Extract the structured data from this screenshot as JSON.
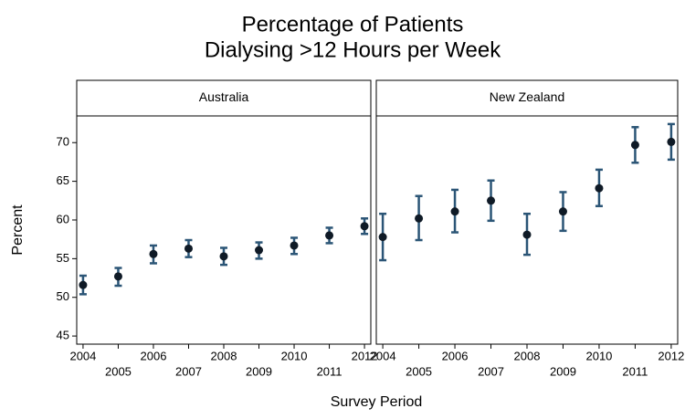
{
  "chart_data": {
    "type": "errorbar",
    "title": [
      "Percentage of Patients",
      "Dialysing >12 Hours per Week"
    ],
    "xlabel": "Survey Period",
    "ylabel": "Percent",
    "xlim": [
      2003.82,
      2012.18
    ],
    "xticks": [
      2004,
      2005,
      2006,
      2007,
      2008,
      2009,
      2010,
      2011,
      2012
    ],
    "ylim": [
      43.95,
      73.45
    ],
    "yticks": [
      45,
      50,
      55,
      60,
      65,
      70
    ],
    "bar_color": "#2b5576",
    "point_color": "#0f1a26",
    "panels": [
      {
        "name": "Australia",
        "x": [
          2004,
          2005,
          2006,
          2007,
          2008,
          2009,
          2010,
          2011,
          2012
        ],
        "values": [
          51.6,
          52.7,
          55.6,
          56.3,
          55.3,
          56.1,
          56.7,
          58.0,
          59.2
        ],
        "low": [
          50.4,
          51.5,
          54.4,
          55.2,
          54.2,
          55.0,
          55.6,
          57.0,
          58.2
        ],
        "high": [
          52.8,
          53.8,
          56.7,
          57.4,
          56.4,
          57.1,
          57.7,
          59.0,
          60.2
        ]
      },
      {
        "name": "New Zealand",
        "x": [
          2004,
          2005,
          2006,
          2007,
          2008,
          2009,
          2010,
          2011,
          2012
        ],
        "values": [
          57.8,
          60.2,
          61.1,
          62.5,
          58.1,
          61.1,
          64.1,
          69.7,
          70.1
        ],
        "low": [
          54.8,
          57.4,
          58.4,
          59.9,
          55.5,
          58.6,
          61.8,
          67.4,
          67.8
        ],
        "high": [
          60.8,
          63.1,
          63.9,
          65.1,
          60.8,
          63.6,
          66.5,
          72.0,
          72.4
        ]
      }
    ]
  }
}
